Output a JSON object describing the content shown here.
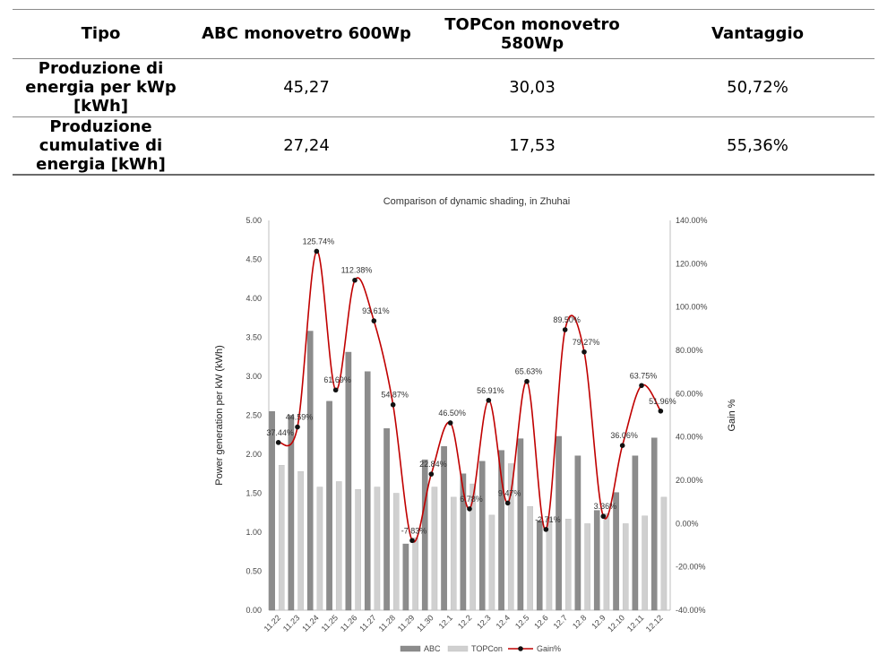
{
  "table": {
    "headers": [
      "Tipo",
      "ABC monovetro 600Wp",
      "TOPCon monovetro 580Wp",
      "Vantaggio"
    ],
    "rows": [
      [
        "Produzione di energia per kWp [kWh]",
        "45,27",
        "30,03",
        "50,72%"
      ],
      [
        "Produzione cumulative di energia [kWh]",
        "27,24",
        "17,53",
        "55,36%"
      ]
    ]
  },
  "chart_data": {
    "type": "bar",
    "title": "Comparison of dynamic shading, in Zhuhai",
    "xlabel": "",
    "ylabel": "Power generation per kW (kWh)",
    "y2label": "Gain %",
    "ylim": [
      0,
      5
    ],
    "y_ticks": [
      "0.00",
      "0.50",
      "1.00",
      "1.50",
      "2.00",
      "2.50",
      "3.00",
      "3.50",
      "4.00",
      "4.50",
      "5.00"
    ],
    "y2lim": [
      -40,
      140
    ],
    "y2_ticks": [
      "-40.00%",
      "-20.00%",
      "0.00%",
      "20.00%",
      "40.00%",
      "60.00%",
      "80.00%",
      "100.00%",
      "120.00%",
      "140.00%"
    ],
    "categories": [
      "11.22",
      "11.23",
      "11.24",
      "11.25",
      "11.26",
      "11.27",
      "11.28",
      "11.29",
      "11.30",
      "12.1",
      "12.2",
      "12.3",
      "12.4",
      "12.5",
      "12.6",
      "12.7",
      "12.8",
      "12.9",
      "12.10",
      "12.11",
      "12.12"
    ],
    "series": [
      {
        "name": "ABC",
        "type": "bar",
        "color": "#8c8c8c",
        "values": [
          2.55,
          2.5,
          3.58,
          2.68,
          3.31,
          3.06,
          2.33,
          0.85,
          1.93,
          2.1,
          1.75,
          1.91,
          2.05,
          2.2,
          1.15,
          2.23,
          1.98,
          1.28,
          1.51,
          1.98,
          2.21
        ]
      },
      {
        "name": "TOPCon",
        "type": "bar",
        "color": "#d0d0d0",
        "values": [
          1.86,
          1.78,
          1.58,
          1.65,
          1.55,
          1.58,
          1.5,
          0.93,
          1.58,
          1.45,
          1.62,
          1.22,
          1.88,
          1.33,
          1.18,
          1.17,
          1.11,
          1.24,
          1.11,
          1.21,
          1.45
        ]
      },
      {
        "name": "Gain%",
        "type": "line",
        "axis": "right",
        "color": "#c00000",
        "values": [
          37.44,
          44.59,
          125.74,
          61.69,
          112.38,
          93.61,
          54.87,
          -7.83,
          22.84,
          46.5,
          6.78,
          56.91,
          9.47,
          65.63,
          -2.71,
          89.5,
          79.27,
          3.36,
          36.06,
          63.75,
          51.96
        ]
      }
    ],
    "point_labels": [
      "37.44%",
      "44.59%",
      "125.74%",
      "61.69%",
      "112.38%",
      "93.61%",
      "54.87%",
      "-7.83%",
      "22.84%",
      "46.50%",
      "6.78%",
      "56.91%",
      "9.47%",
      "65.63%",
      "-2.71%",
      "89.50%",
      "79.27%",
      "3.36%",
      "36.06%",
      "63.75%",
      "51.96%"
    ],
    "legend_position": "bottom",
    "grid": false
  }
}
